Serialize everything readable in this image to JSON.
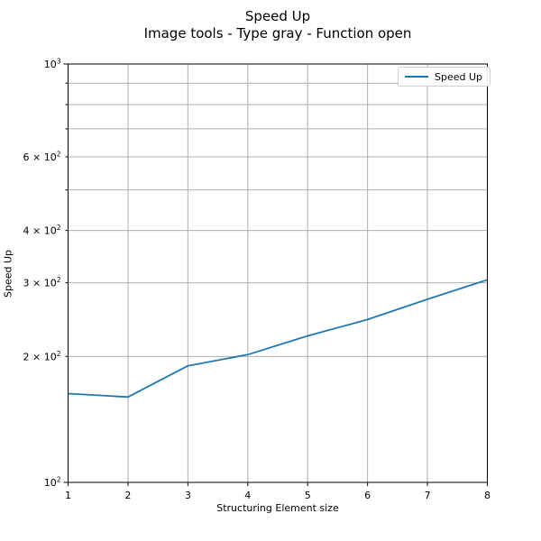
{
  "title": "Speed Up",
  "subtitle": "Image tools - Type gray - Function open",
  "axes": {
    "x_label": "Structuring Element size",
    "y_label": "Speed Up"
  },
  "legend": {
    "label": "Speed Up"
  },
  "colors": {
    "line": "#1f77b4",
    "grid": "#b0b0b0",
    "spine": "#000000",
    "text": "#000000",
    "legend_border": "#d0d0d0"
  },
  "chart_data": {
    "type": "line",
    "title": "Speed Up",
    "subtitle": "Image tools - Type gray - Function open",
    "xlabel": "Structuring Element size",
    "ylabel": "Speed Up",
    "x": [
      1,
      2,
      3,
      4,
      5,
      6,
      7,
      8
    ],
    "series": [
      {
        "name": "Speed Up",
        "color": "#1f77b4",
        "values": [
          163,
          160,
          190,
          202,
          224,
          245,
          274,
          305
        ]
      }
    ],
    "xlim": [
      1,
      8
    ],
    "ylim": [
      100,
      1000
    ],
    "yscale": "log",
    "grid": true,
    "legend_position": "upper right",
    "x_ticks": [
      {
        "value": 1,
        "label": "1"
      },
      {
        "value": 2,
        "label": "2"
      },
      {
        "value": 3,
        "label": "3"
      },
      {
        "value": 4,
        "label": "4"
      },
      {
        "value": 5,
        "label": "5"
      },
      {
        "value": 6,
        "label": "6"
      },
      {
        "value": 7,
        "label": "7"
      },
      {
        "value": 8,
        "label": "8"
      }
    ],
    "y_ticks": [
      {
        "value": 100,
        "base": "10",
        "sup": "2",
        "major": true
      },
      {
        "value": 200,
        "base": "2 × 10",
        "sup": "2",
        "major": false
      },
      {
        "value": 300,
        "base": "3 × 10",
        "sup": "2",
        "major": false
      },
      {
        "value": 400,
        "base": "4 × 10",
        "sup": "2",
        "major": false
      },
      {
        "value": 500,
        "major": false
      },
      {
        "value": 600,
        "base": "6 × 10",
        "sup": "2",
        "major": false
      },
      {
        "value": 700,
        "major": false
      },
      {
        "value": 800,
        "major": false
      },
      {
        "value": 900,
        "major": false
      },
      {
        "value": 1000,
        "base": "10",
        "sup": "3",
        "major": true
      }
    ]
  }
}
